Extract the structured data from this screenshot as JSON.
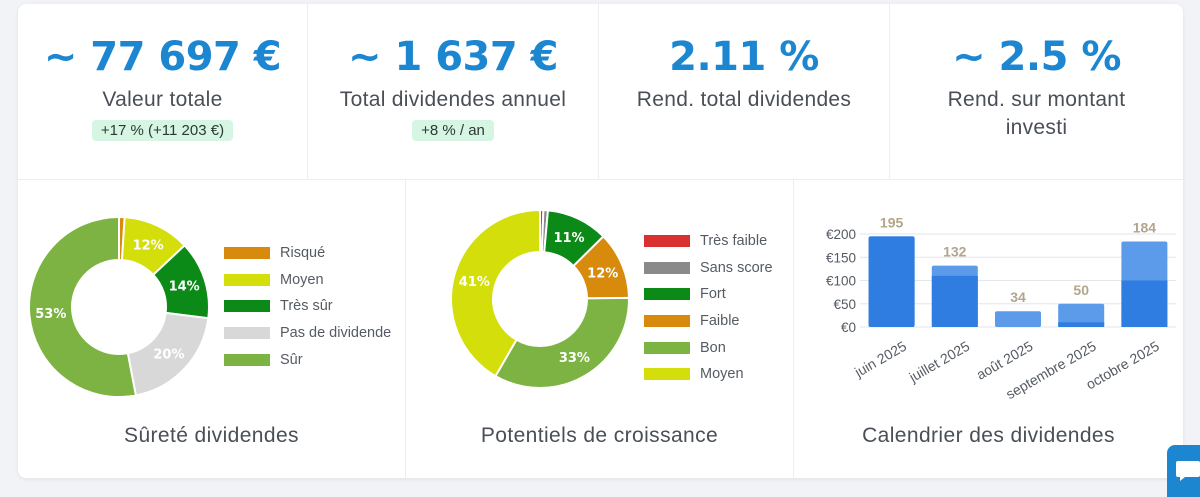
{
  "stats": [
    {
      "value": "~ 77 697 €",
      "label": "Valeur totale",
      "badge": "+17 % (+11 203 €)"
    },
    {
      "value": "~ 1 637 €",
      "label": "Total dividendes annuel",
      "badge": "+8 % / an"
    },
    {
      "value": "2.11 %",
      "label": "Rend. total dividendes",
      "badge": ""
    },
    {
      "value": "~ 2.5 %",
      "label": "Rend. sur montant investi",
      "badge": ""
    }
  ],
  "colors": {
    "accent": "#1c86d1",
    "badge_bg": "#d6f5e3",
    "risque": "#d78a0b",
    "moyen": "#d3de0b",
    "tres_sur": "#0c8a18",
    "pas_de_dividende": "#d8d8d8",
    "sur": "#7cb342",
    "tres_faible": "#d93030",
    "sans_score": "#8a8a8a",
    "bar_dark": "#2f7de0",
    "bar_light": "#5b9bea"
  },
  "panels": {
    "surete": {
      "title": "Sûreté dividendes"
    },
    "croissance": {
      "title": "Potentiels de croissance"
    },
    "calendrier": {
      "title": "Calendrier des dividendes"
    }
  },
  "chart_data": [
    {
      "type": "pie",
      "title": "Sûreté dividendes",
      "legend_position": "right",
      "slices": [
        {
          "name": "Risqué",
          "value": 1,
          "label": "",
          "color": "#d78a0b"
        },
        {
          "name": "Moyen",
          "value": 12,
          "label": "12%",
          "color": "#d3de0b"
        },
        {
          "name": "Très sûr",
          "value": 14,
          "label": "14%",
          "color": "#0c8a18"
        },
        {
          "name": "Pas de dividende",
          "value": 20,
          "label": "20%",
          "color": "#d8d8d8"
        },
        {
          "name": "Sûr",
          "value": 53,
          "label": "53%",
          "color": "#7cb342"
        }
      ]
    },
    {
      "type": "pie",
      "title": "Potentiels de croissance",
      "legend_position": "right",
      "slices": [
        {
          "name": "Très faible",
          "value": 0.6,
          "label": "",
          "color": "#d93030"
        },
        {
          "name": "Sans score",
          "value": 0.8,
          "label": "",
          "color": "#8a8a8a"
        },
        {
          "name": "Fort",
          "value": 11,
          "label": "11%",
          "color": "#0c8a18"
        },
        {
          "name": "Faible",
          "value": 12,
          "label": "12%",
          "color": "#d78a0b"
        },
        {
          "name": "Bon",
          "value": 33,
          "label": "33%",
          "color": "#7cb342"
        },
        {
          "name": "Moyen",
          "value": 41,
          "label": "41%",
          "color": "#d3de0b"
        }
      ]
    },
    {
      "type": "bar",
      "title": "Calendrier des dividendes",
      "categories": [
        "juin 2025",
        "juillet 2025",
        "août 2025",
        "septembre 2025",
        "octobre 2025"
      ],
      "values": [
        195,
        132,
        34,
        50,
        184
      ],
      "value_labels": [
        "195",
        "132",
        "34",
        "50",
        "184"
      ],
      "stack_dark": [
        195,
        110,
        0,
        10,
        100
      ],
      "y_ticks": [
        "€200",
        "€150",
        "€100",
        "€50",
        "€0"
      ],
      "ylim": [
        0,
        200
      ],
      "grid": true
    }
  ]
}
